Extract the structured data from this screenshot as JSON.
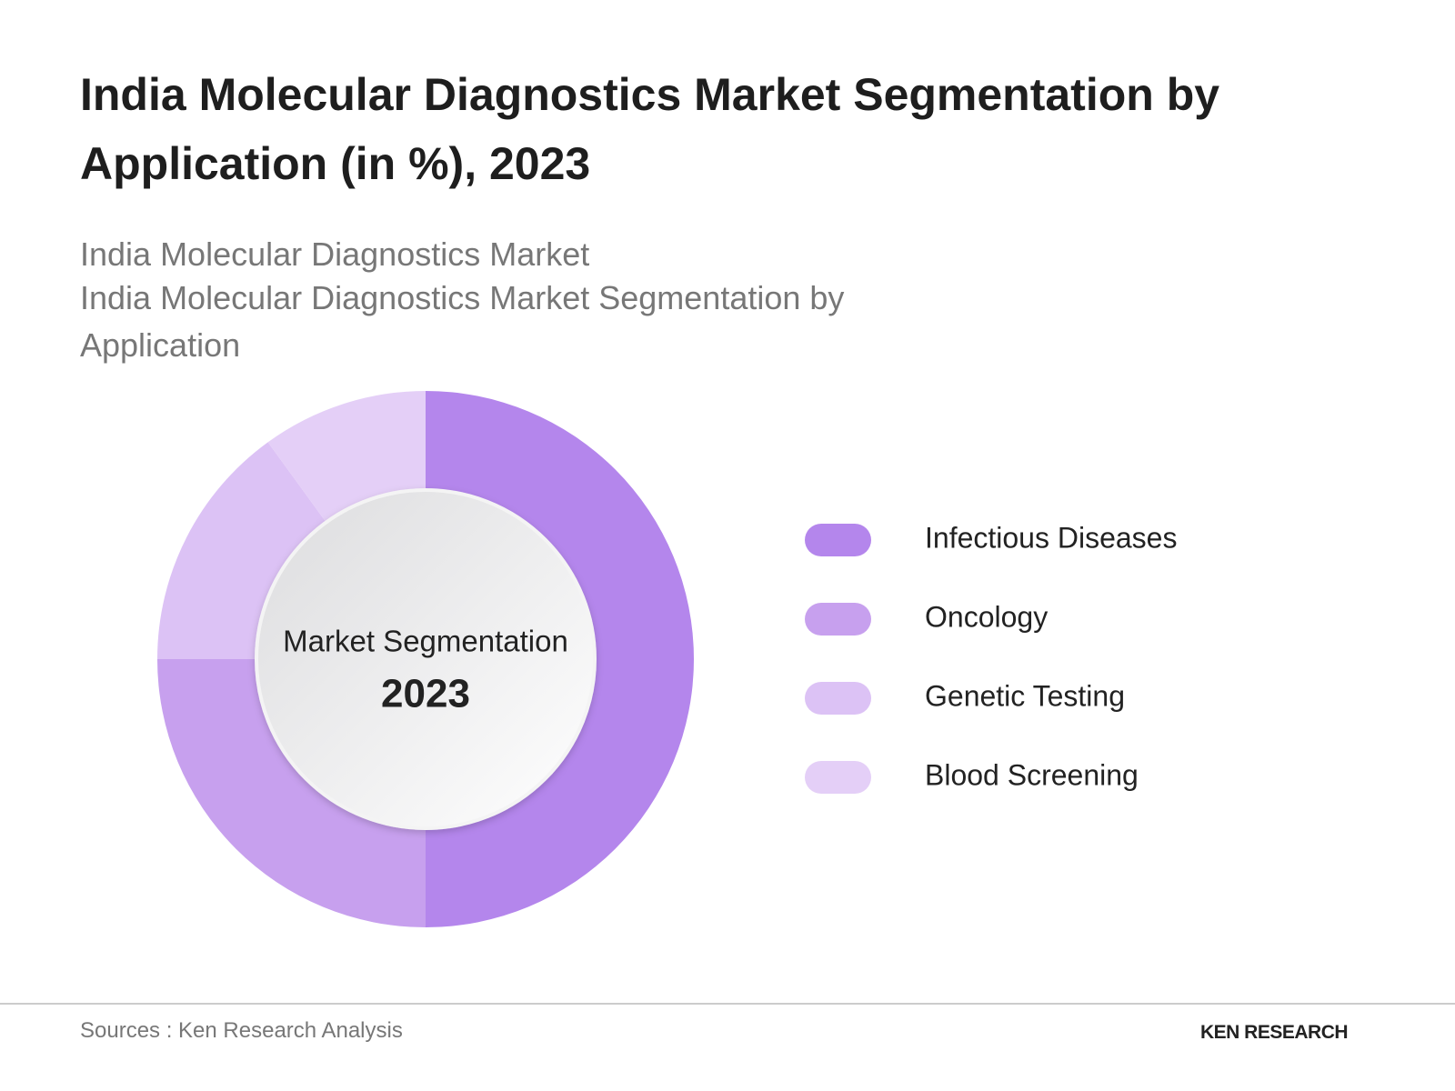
{
  "chart_data": {
    "type": "donut",
    "title": "India Molecular Diagnostics Market Segmentation by Application (in %), 2023",
    "subtitle": [
      "India Molecular Diagnostics Market",
      "India Molecular Diagnostics Market Segmentation by Application"
    ],
    "categories": [
      "Infectious Diseases",
      "Oncology",
      "Genetic Testing",
      "Blood Screening"
    ],
    "values": [
      50,
      25,
      15,
      10
    ],
    "colors": [
      "#b486ec",
      "#c7a0ee",
      "#dcc2f5",
      "#e4cff7"
    ],
    "center_label": "Market Segmentation",
    "center_value": "2023",
    "source": "Sources : Ken Research Analysis",
    "logo": "KEN RESEARCH"
  }
}
